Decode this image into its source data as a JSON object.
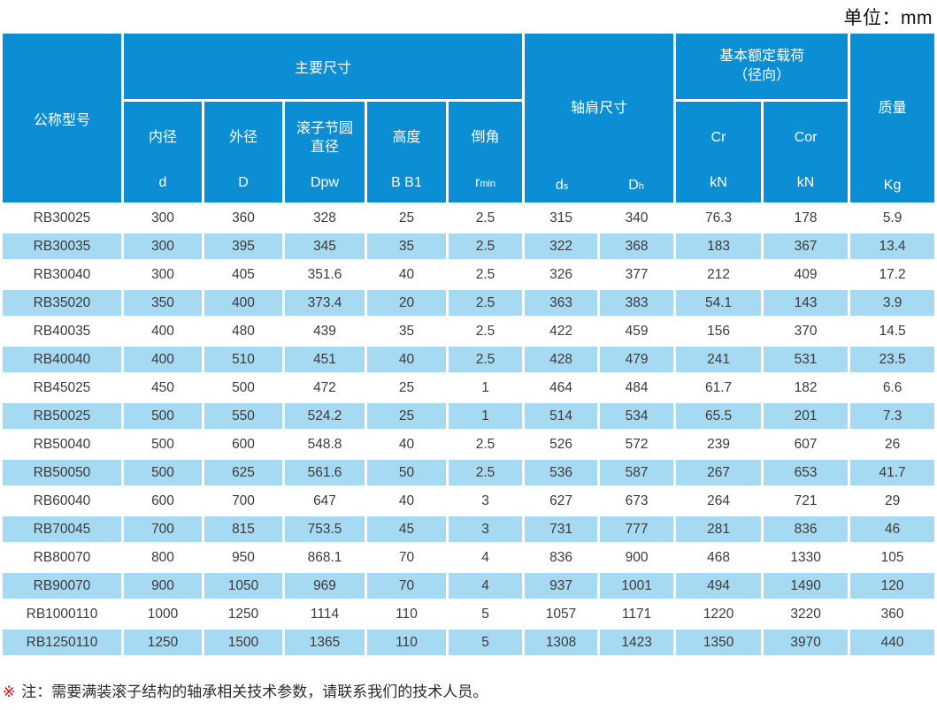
{
  "page": {
    "unit_label": "单位：mm",
    "note_marker": "※",
    "note_text": "注：需要满装滚子结构的轴承相关技术参数，请联系我们的技术人员。"
  },
  "colors": {
    "header_blue": "#0b8ed3",
    "stripe_blue": "#a6daf3",
    "note_red": "#e60012",
    "data_text": "#3b3b3b"
  },
  "table": {
    "header": {
      "model": "公称型号",
      "main_dims_group": "主要尺寸",
      "bore": {
        "label": "内径",
        "symbol": "d"
      },
      "outer": {
        "label": "外径",
        "symbol": "D"
      },
      "pitch": {
        "label": "滚子节圆直径",
        "symbol": "Dpw"
      },
      "height": {
        "label": "高度",
        "symbol": "B B1"
      },
      "chamfer": {
        "label": "倒角",
        "sym_base": "r",
        "sym_sub": "min"
      },
      "shoulder": {
        "group": "轴肩尺寸",
        "ds_base": "d",
        "ds_sub": "s",
        "dh_base": "D",
        "dh_sub": "h"
      },
      "load_group_line1": "基本额定载荷",
      "load_group_line2": "（径向）",
      "cr": {
        "label": "Cr",
        "unit": "kN"
      },
      "cor": {
        "label": "Cor",
        "unit": "kN"
      },
      "mass": {
        "label": "质量",
        "unit": "Kg"
      }
    },
    "columns": [
      "公称型号",
      "内径 d",
      "外径 D",
      "滚子节圆直径 Dpw",
      "高度 B B1",
      "倒角 r min",
      "轴肩尺寸 ds",
      "轴肩尺寸 Dh",
      "Cr kN",
      "Cor kN",
      "质量 Kg"
    ],
    "rows": [
      [
        "RB30025",
        "300",
        "360",
        "328",
        "25",
        "2.5",
        "315",
        "340",
        "76.3",
        "178",
        "5.9"
      ],
      [
        "RB30035",
        "300",
        "395",
        "345",
        "35",
        "2.5",
        "322",
        "368",
        "183",
        "367",
        "13.4"
      ],
      [
        "RB30040",
        "300",
        "405",
        "351.6",
        "40",
        "2.5",
        "326",
        "377",
        "212",
        "409",
        "17.2"
      ],
      [
        "RB35020",
        "350",
        "400",
        "373.4",
        "20",
        "2.5",
        "363",
        "383",
        "54.1",
        "143",
        "3.9"
      ],
      [
        "RB40035",
        "400",
        "480",
        "439",
        "35",
        "2.5",
        "422",
        "459",
        "156",
        "370",
        "14.5"
      ],
      [
        "RB40040",
        "400",
        "510",
        "451",
        "40",
        "2.5",
        "428",
        "479",
        "241",
        "531",
        "23.5"
      ],
      [
        "RB45025",
        "450",
        "500",
        "472",
        "25",
        "1",
        "464",
        "484",
        "61.7",
        "182",
        "6.6"
      ],
      [
        "RB50025",
        "500",
        "550",
        "524.2",
        "25",
        "1",
        "514",
        "534",
        "65.5",
        "201",
        "7.3"
      ],
      [
        "RB50040",
        "500",
        "600",
        "548.8",
        "40",
        "2.5",
        "526",
        "572",
        "239",
        "607",
        "26"
      ],
      [
        "RB50050",
        "500",
        "625",
        "561.6",
        "50",
        "2.5",
        "536",
        "587",
        "267",
        "653",
        "41.7"
      ],
      [
        "RB60040",
        "600",
        "700",
        "647",
        "40",
        "3",
        "627",
        "673",
        "264",
        "721",
        "29"
      ],
      [
        "RB70045",
        "700",
        "815",
        "753.5",
        "45",
        "3",
        "731",
        "777",
        "281",
        "836",
        "46"
      ],
      [
        "RB80070",
        "800",
        "950",
        "868.1",
        "70",
        "4",
        "836",
        "900",
        "468",
        "1330",
        "105"
      ],
      [
        "RB90070",
        "900",
        "1050",
        "969",
        "70",
        "4",
        "937",
        "1001",
        "494",
        "1490",
        "120"
      ],
      [
        "RB1000110",
        "1000",
        "1250",
        "1114",
        "110",
        "5",
        "1057",
        "1171",
        "1220",
        "3220",
        "360"
      ],
      [
        "RB1250110",
        "1250",
        "1500",
        "1365",
        "110",
        "5",
        "1308",
        "1423",
        "1350",
        "3970",
        "440"
      ]
    ]
  }
}
